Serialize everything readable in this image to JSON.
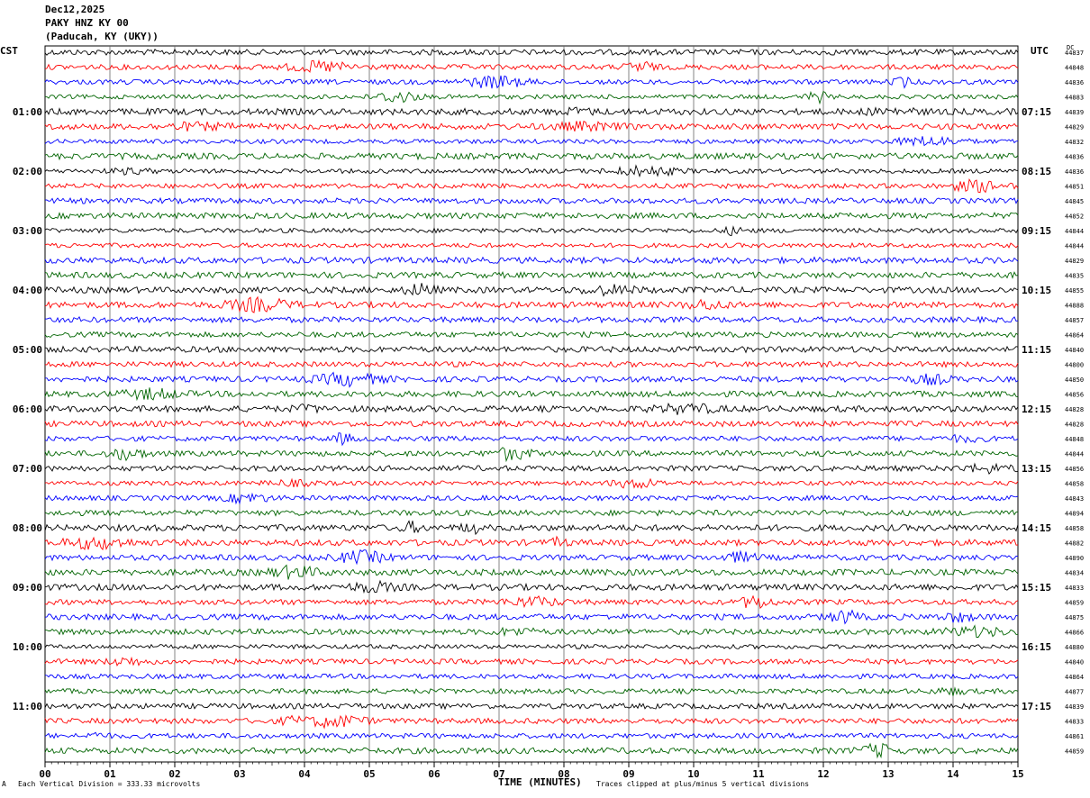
{
  "header": {
    "date": "Dec12,2025",
    "station": "PAKY HNZ KY 00",
    "location": "(Paducah, KY (UKY))"
  },
  "labels": {
    "left_tz": "CST",
    "right_tz": "UTC",
    "dc_header": "DC"
  },
  "footer": {
    "scale": "Each Vertical Division =  333.33 microvolts",
    "clip": "Traces clipped at plus/minus 5 vertical divisions",
    "marker": "A"
  },
  "chart_data": {
    "type": "line",
    "title": "",
    "xlabel": "TIME (MINUTES)",
    "ylabel": "",
    "x_ticks": [
      "00",
      "01",
      "02",
      "03",
      "04",
      "05",
      "06",
      "07",
      "08",
      "09",
      "10",
      "11",
      "12",
      "13",
      "14",
      "15"
    ],
    "xlim": [
      0,
      15
    ],
    "grid": true,
    "trace_colors": [
      "#000000",
      "#ff0000",
      "#0000ff",
      "#006400"
    ],
    "left_hour_labels": [
      "01:00",
      "02:00",
      "03:00",
      "04:00",
      "05:00",
      "06:00",
      "07:00",
      "08:00",
      "09:00",
      "10:00",
      "11:00"
    ],
    "right_hour_labels": [
      "07:15",
      "08:15",
      "09:15",
      "10:15",
      "11:15",
      "12:15",
      "13:15",
      "14:15",
      "15:15",
      "16:15",
      "17:15"
    ],
    "dc_offsets": [
      "44837",
      "44848",
      "44836",
      "44883",
      "44839",
      "44829",
      "44832",
      "44836",
      "44836",
      "44851",
      "44845",
      "44852",
      "44844",
      "44844",
      "44829",
      "44835",
      "44855",
      "44888",
      "44857",
      "44864",
      "44840",
      "44800",
      "44850",
      "44856",
      "44828",
      "44828",
      "44848",
      "44844",
      "44856",
      "44858",
      "44843",
      "44894",
      "44858",
      "44882",
      "44890",
      "44834",
      "44833",
      "44859",
      "44875",
      "44866",
      "44880",
      "44840",
      "44864",
      "44877",
      "44839",
      "44833",
      "44861",
      "44859"
    ],
    "trace_count": 48,
    "minutes_per_trace": 15
  }
}
